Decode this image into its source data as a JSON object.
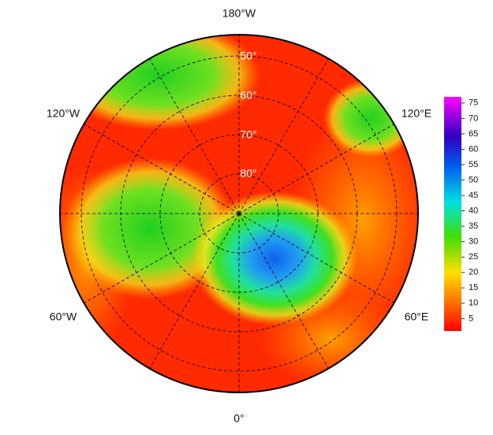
{
  "map": {
    "longitude_labels": [
      "180°W",
      "120°W",
      "120°E",
      "60°W",
      "60°E",
      "0°"
    ],
    "latitude_labels": [
      "50°",
      "60°",
      "70°",
      "80°"
    ],
    "colorbar": {
      "range": [
        1,
        77
      ],
      "ticks": [
        5,
        10,
        15,
        20,
        25,
        30,
        35,
        40,
        45,
        50,
        55,
        60,
        65,
        70,
        75
      ]
    }
  }
}
